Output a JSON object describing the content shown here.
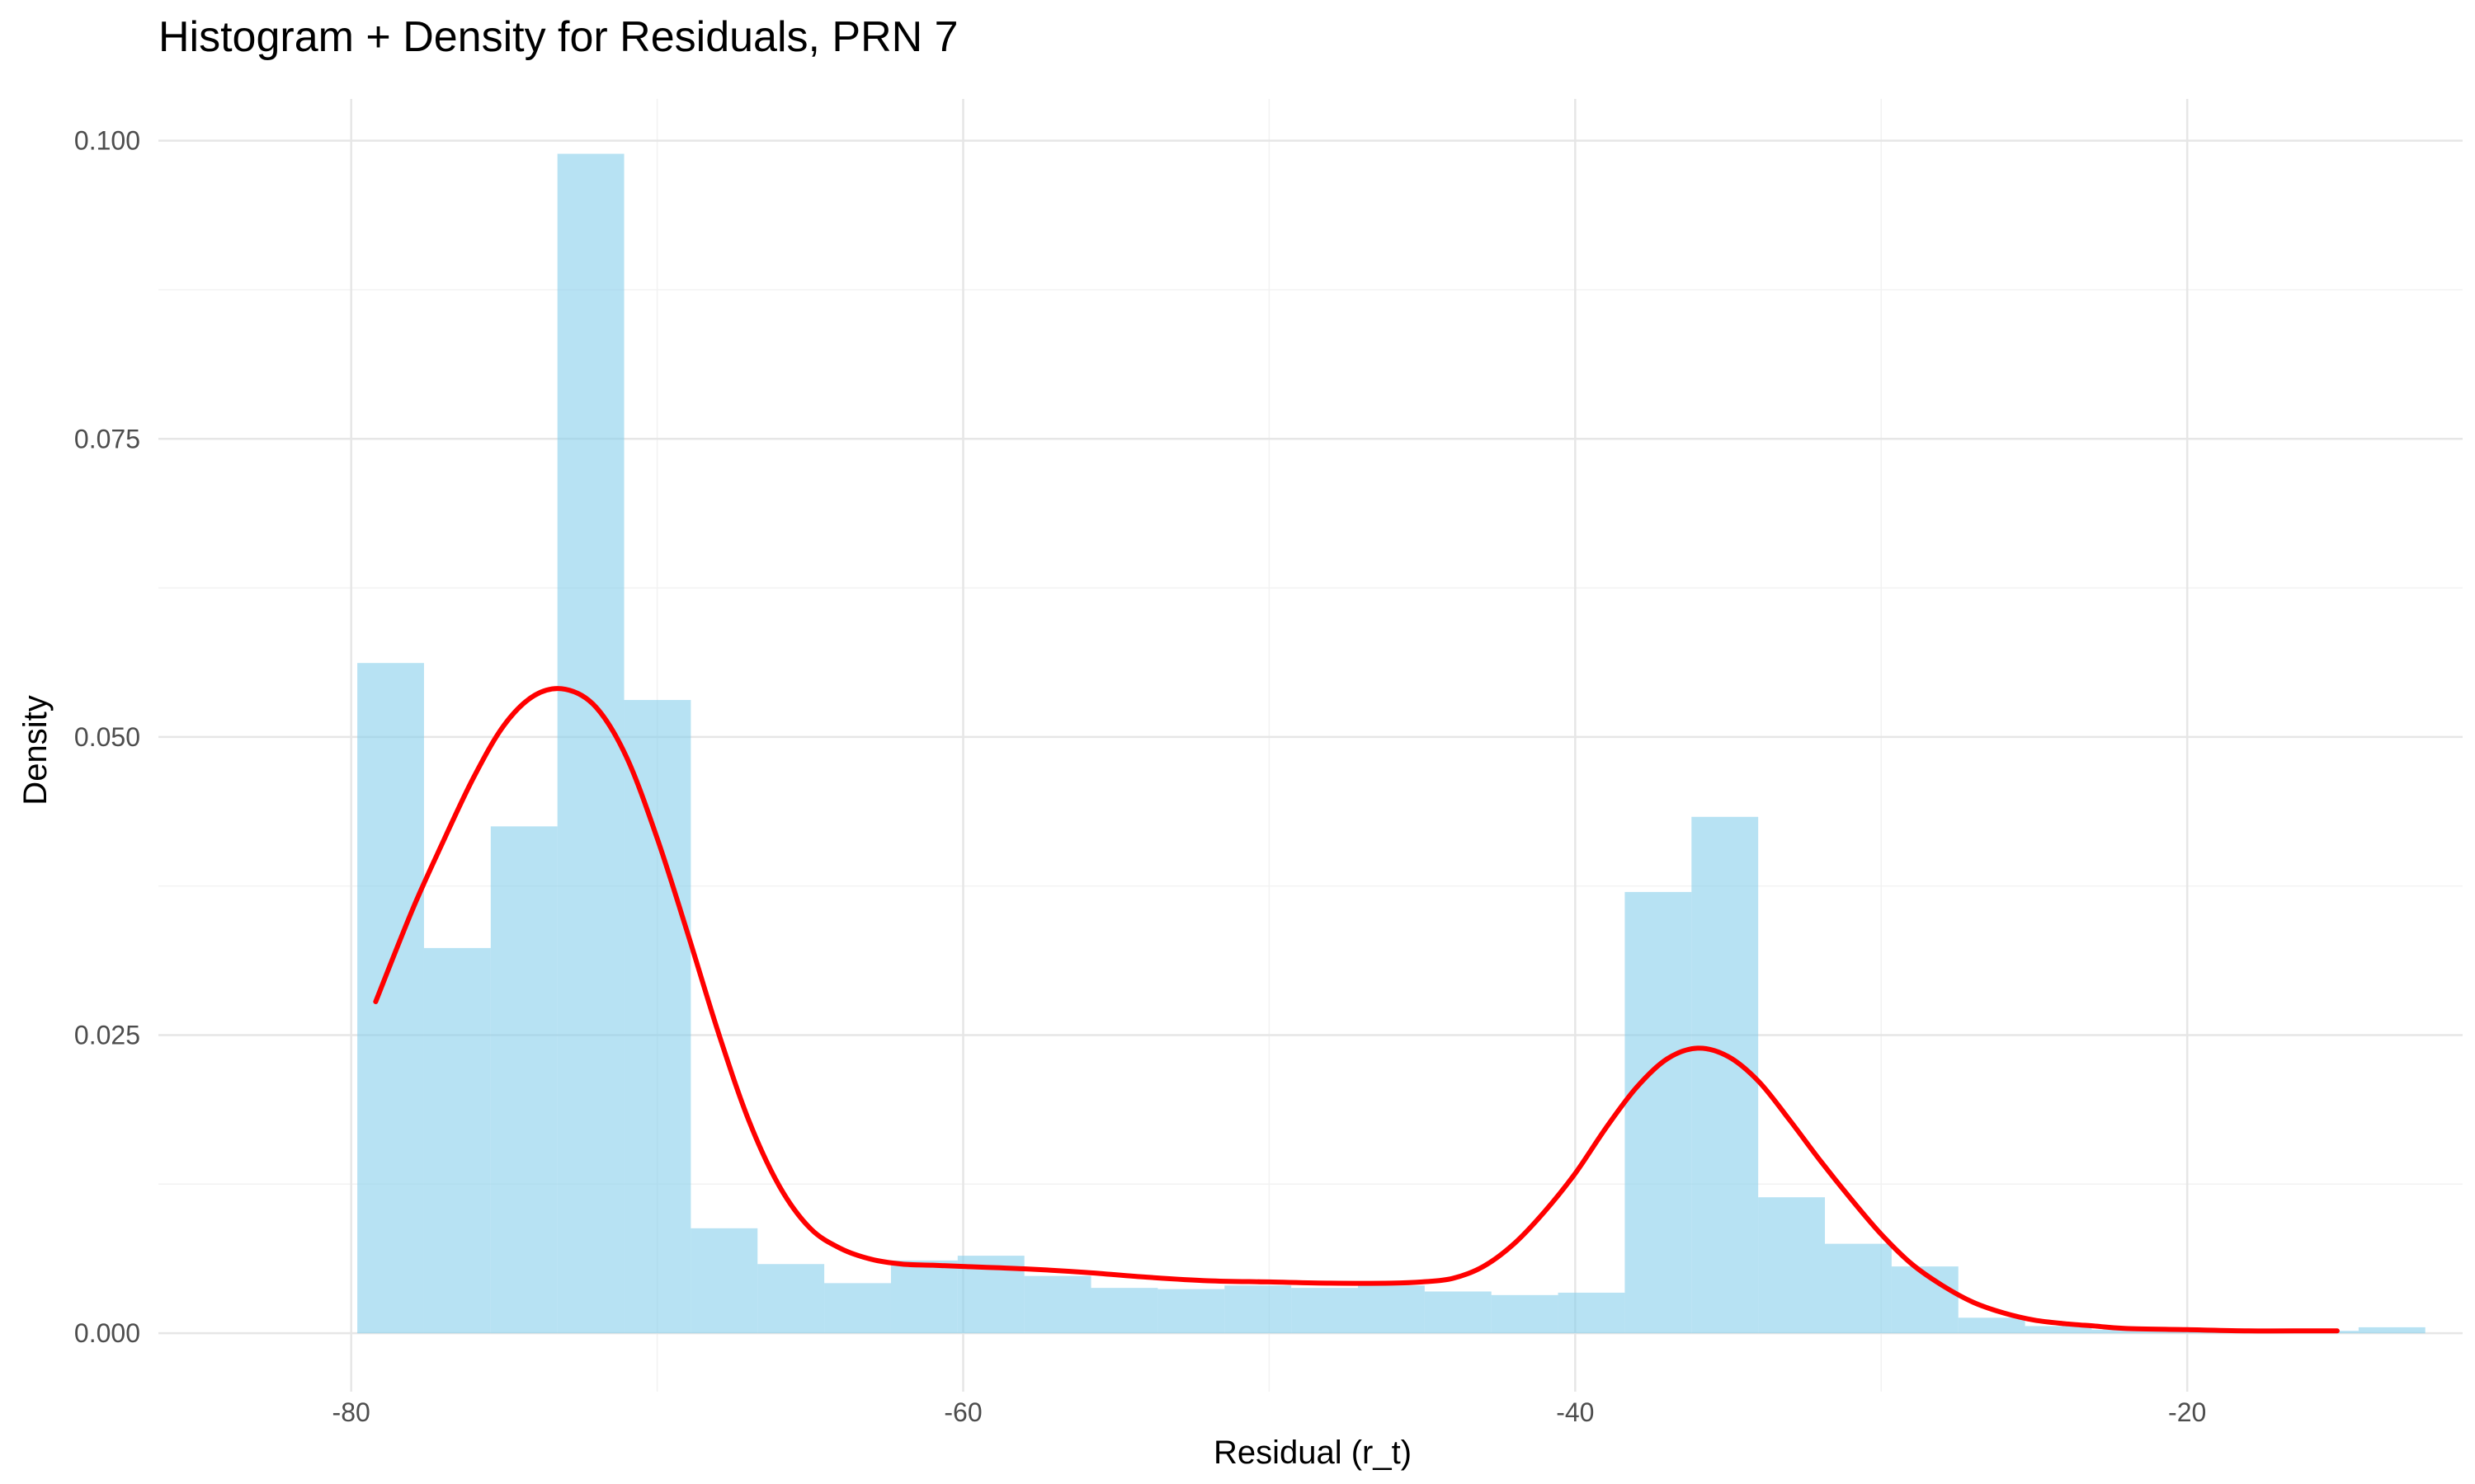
{
  "chart_data": {
    "type": "histogram",
    "title": "Histogram + Density for Residuals, PRN 7",
    "xlabel": "Residual (r_t)",
    "ylabel": "Density",
    "xlim": [
      -86.3,
      -11.0
    ],
    "ylim": [
      -0.0049,
      0.1035
    ],
    "x_ticks": [
      -80,
      -60,
      -40,
      -20
    ],
    "x_tick_labels": [
      "-80",
      "-60",
      "-40",
      "-20"
    ],
    "y_ticks": [
      0.0,
      0.025,
      0.05,
      0.075,
      0.1
    ],
    "y_tick_labels": [
      "0.000",
      "0.025",
      "0.050",
      "0.075",
      "0.100"
    ],
    "grid": true,
    "legend": "none",
    "bin_width": 2.18,
    "histogram": {
      "bin_starts": [
        -79.8,
        -77.62,
        -75.44,
        -73.26,
        -71.08,
        -68.9,
        -66.72,
        -64.54,
        -62.36,
        -60.18,
        -58.0,
        -55.82,
        -53.64,
        -51.46,
        -49.28,
        -47.1,
        -44.92,
        -42.74,
        -40.56,
        -38.38,
        -36.2,
        -34.02,
        -31.84,
        -29.66,
        -27.48,
        -25.3,
        -23.12,
        -20.94,
        -18.76,
        -16.58,
        -14.4
      ],
      "values": [
        0.0562,
        0.0323,
        0.0425,
        0.0989,
        0.0531,
        0.0088,
        0.0058,
        0.0042,
        0.0061,
        0.0065,
        0.0048,
        0.0038,
        0.0037,
        0.004,
        0.0038,
        0.004,
        0.0035,
        0.0032,
        0.0034,
        0.037,
        0.0433,
        0.0114,
        0.0075,
        0.0056,
        0.0013,
        0.0006,
        0.0003,
        0.0002,
        0.0002,
        0.0002,
        0.0005
      ],
      "color": "#87ceeb"
    },
    "density": {
      "color": "#ff0000",
      "x": [
        -79.2,
        -78.0,
        -77.0,
        -76.0,
        -75.0,
        -74.0,
        -73.0,
        -72.0,
        -71.0,
        -70.0,
        -69.0,
        -68.0,
        -67.0,
        -66.0,
        -65.0,
        -64.0,
        -63.0,
        -62.0,
        -61.0,
        -60.0,
        -58.0,
        -56.0,
        -54.0,
        -52.0,
        -50.0,
        -48.0,
        -46.0,
        -45.0,
        -44.0,
        -43.0,
        -42.0,
        -41.0,
        -40.0,
        -39.0,
        -38.0,
        -37.0,
        -36.0,
        -35.0,
        -34.0,
        -33.0,
        -32.0,
        -31.0,
        -30.0,
        -29.0,
        -28.0,
        -27.0,
        -26.0,
        -25.0,
        -24.0,
        -23.0,
        -22.0,
        -20.0,
        -18.0,
        -16.0,
        -15.1
      ],
      "y": [
        0.0278,
        0.0355,
        0.0412,
        0.0466,
        0.051,
        0.0535,
        0.054,
        0.0525,
        0.0483,
        0.0415,
        0.0335,
        0.0252,
        0.0178,
        0.0123,
        0.0088,
        0.0071,
        0.0062,
        0.0058,
        0.0057,
        0.0056,
        0.0054,
        0.0051,
        0.0047,
        0.0044,
        0.0043,
        0.0042,
        0.0042,
        0.0043,
        0.0046,
        0.0056,
        0.0075,
        0.0102,
        0.0134,
        0.0172,
        0.0206,
        0.023,
        0.0239,
        0.0232,
        0.0211,
        0.0179,
        0.0145,
        0.0113,
        0.0083,
        0.0058,
        0.004,
        0.0026,
        0.0017,
        0.0011,
        0.0008,
        0.0006,
        0.0004,
        0.0003,
        0.0002,
        0.0002,
        0.0002
      ]
    }
  }
}
